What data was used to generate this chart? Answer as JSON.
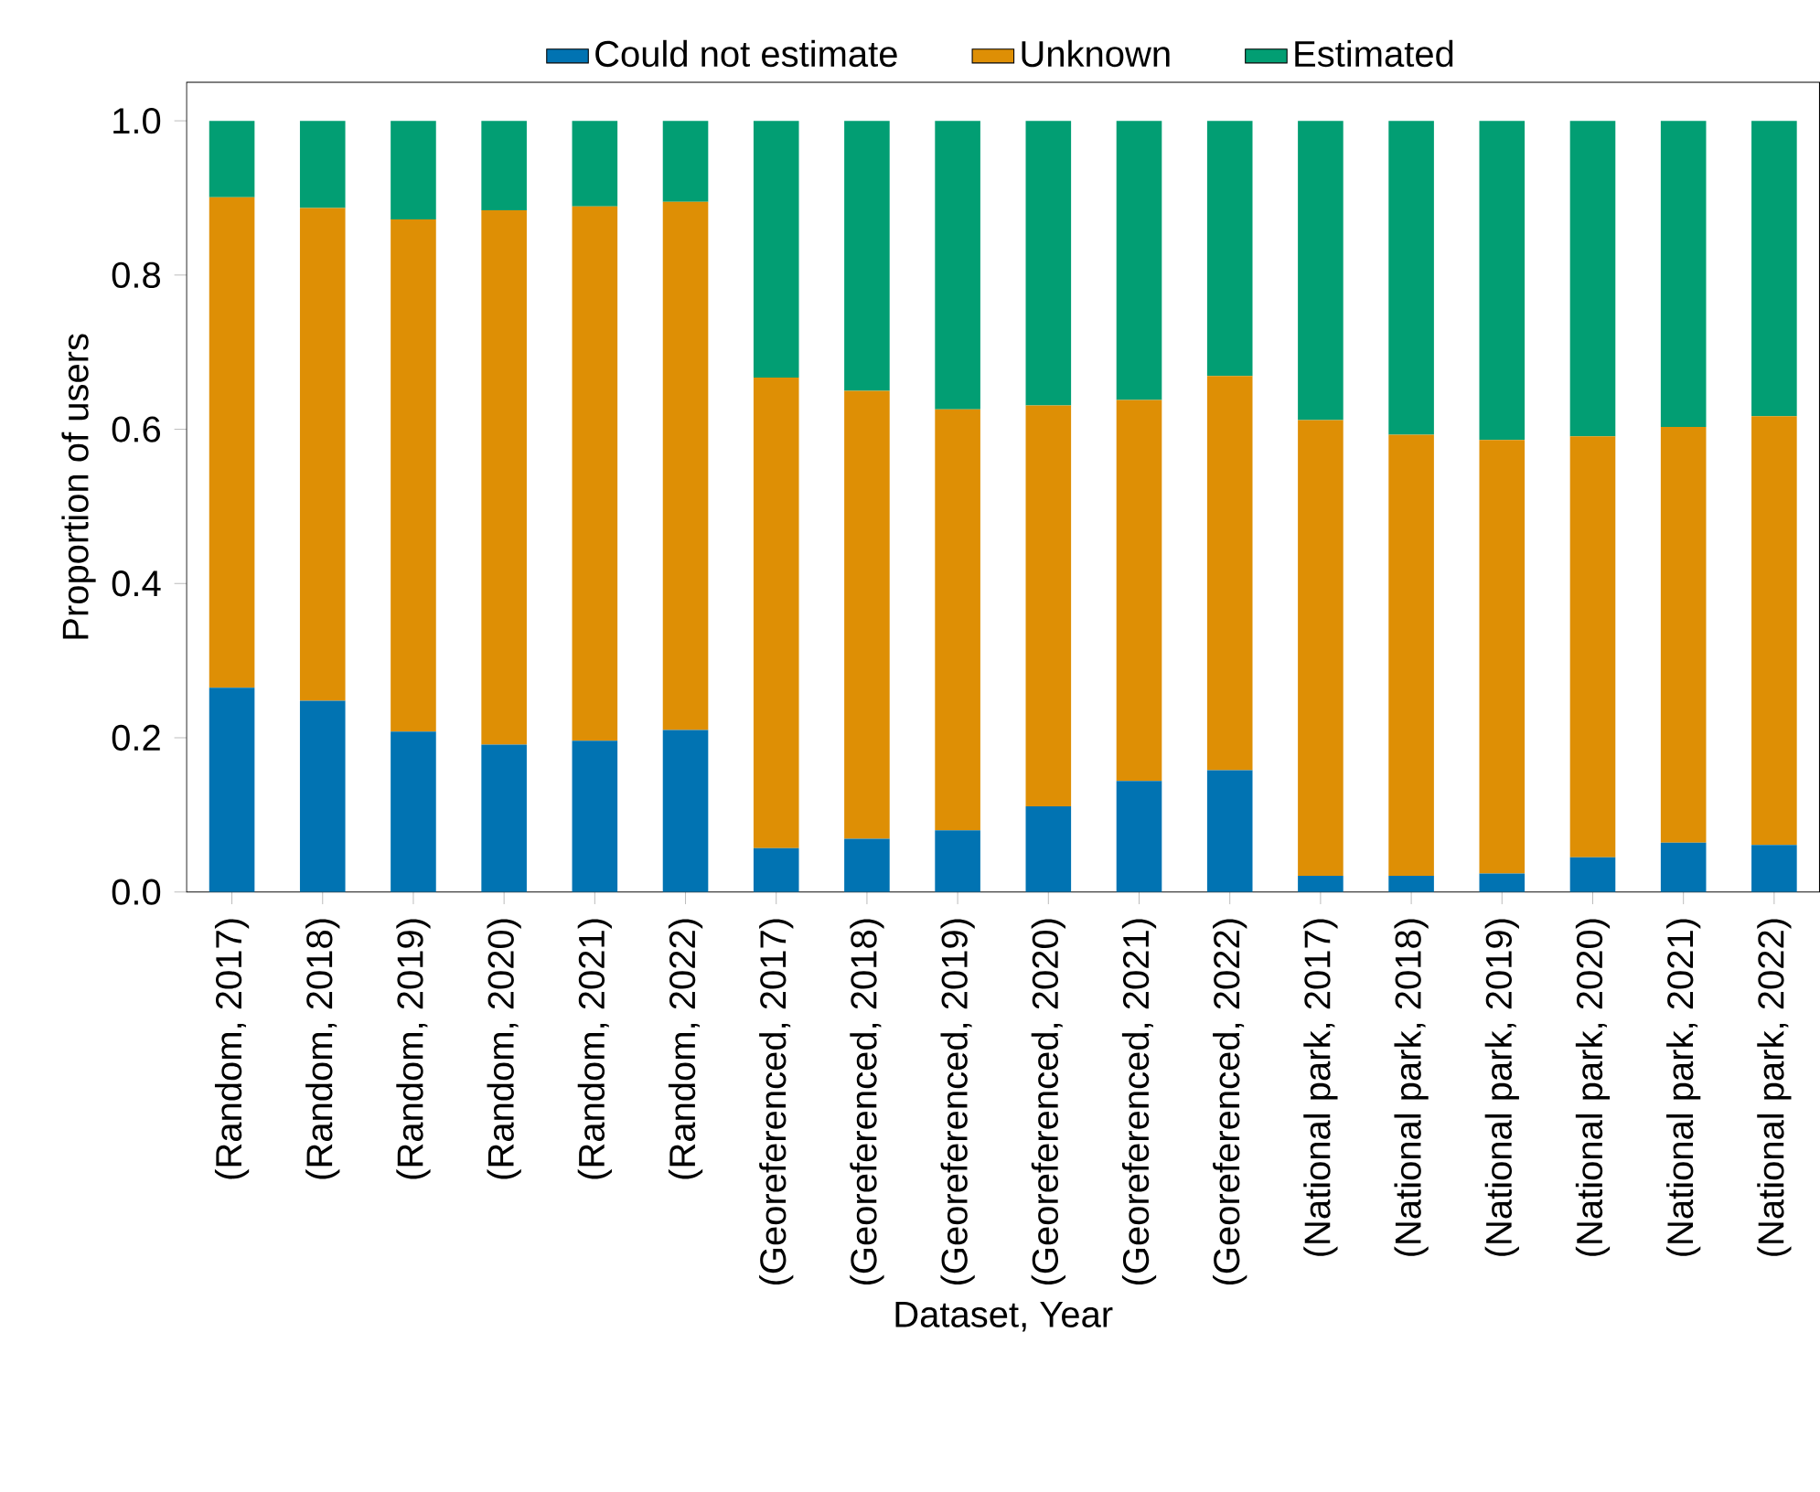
{
  "chart_data": {
    "type": "bar",
    "stacked": true,
    "xlabel": "Dataset, Year",
    "ylabel": "Proportion of users",
    "categories": [
      "(Random, 2017)",
      "(Random, 2018)",
      "(Random, 2019)",
      "(Random, 2020)",
      "(Random, 2021)",
      "(Random, 2022)",
      "(Georeferenced, 2017)",
      "(Georeferenced, 2018)",
      "(Georeferenced, 2019)",
      "(Georeferenced, 2020)",
      "(Georeferenced, 2021)",
      "(Georeferenced, 2022)",
      "(National park, 2017)",
      "(National park, 2018)",
      "(National park, 2019)",
      "(National park, 2020)",
      "(National park, 2021)",
      "(National park, 2022)"
    ],
    "series": [
      {
        "name": "Could not estimate",
        "color": "#0173b2",
        "values": [
          0.265,
          0.248,
          0.208,
          0.191,
          0.196,
          0.21,
          0.057,
          0.069,
          0.08,
          0.111,
          0.144,
          0.158,
          0.021,
          0.021,
          0.024,
          0.045,
          0.064,
          0.061
        ]
      },
      {
        "name": "Unknown",
        "color": "#de8f05",
        "values": [
          0.636,
          0.639,
          0.664,
          0.693,
          0.693,
          0.685,
          0.61,
          0.581,
          0.546,
          0.52,
          0.494,
          0.511,
          0.591,
          0.572,
          0.562,
          0.546,
          0.539,
          0.556
        ]
      },
      {
        "name": "Estimated",
        "color": "#029e73",
        "values": [
          0.099,
          0.113,
          0.128,
          0.116,
          0.111,
          0.105,
          0.333,
          0.35,
          0.374,
          0.369,
          0.362,
          0.331,
          0.388,
          0.407,
          0.414,
          0.409,
          0.397,
          0.383
        ]
      }
    ],
    "ylim": [
      0,
      1.05
    ],
    "yticks": [
      {
        "value": 0,
        "label": "0.0"
      },
      0.2,
      0.4,
      0.6,
      0.8,
      {
        "value": 1,
        "label": "1.0"
      }
    ],
    "legend": "top",
    "grid": false
  }
}
